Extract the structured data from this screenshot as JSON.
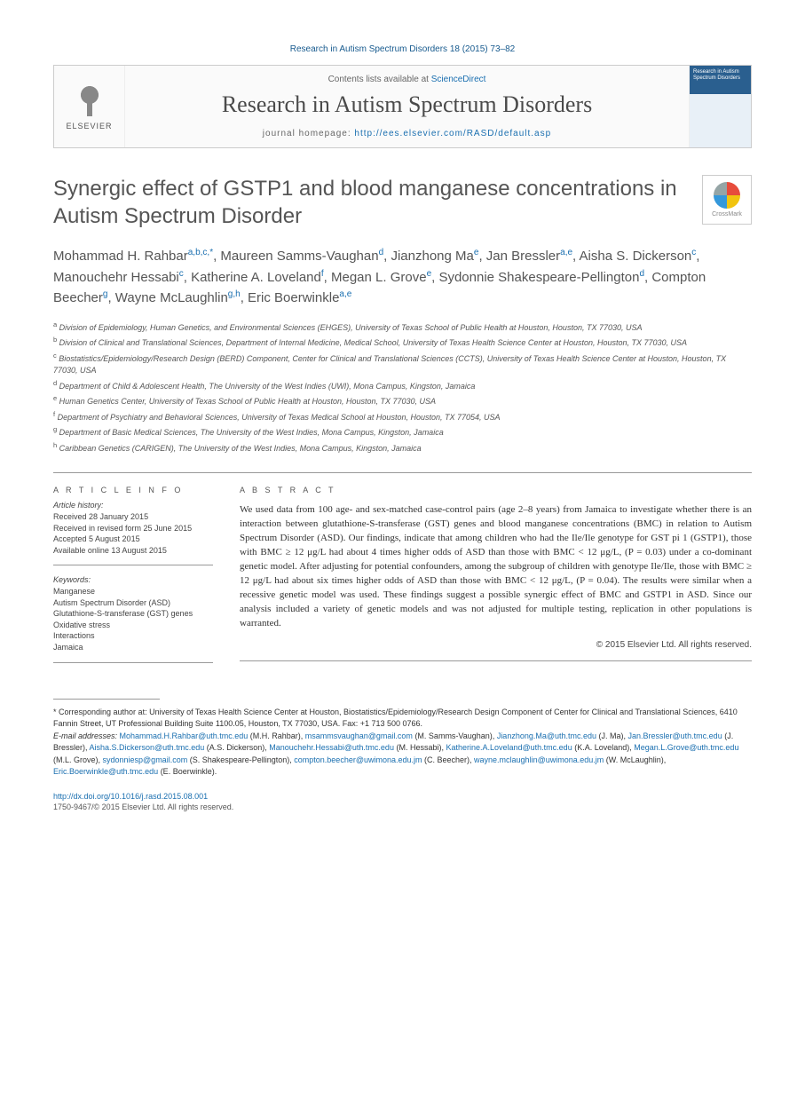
{
  "citation": "Research in Autism Spectrum Disorders 18 (2015) 73–82",
  "header": {
    "contents_prefix": "Contents lists available at ",
    "contents_link": "ScienceDirect",
    "journal_name": "Research in Autism Spectrum Disorders",
    "homepage_prefix": "journal homepage: ",
    "homepage_url": "http://ees.elsevier.com/RASD/default.asp",
    "publisher": "ELSEVIER",
    "cover_text": "Research in Autism Spectrum Disorders"
  },
  "title": "Synergic effect of GSTP1 and blood manganese concentrations in Autism Spectrum Disorder",
  "crossmark": "CrossMark",
  "authors_html": "Mohammad H. Rahbar<sup>a,b,c,*</sup>, Maureen Samms-Vaughan<sup>d</sup>, Jianzhong Ma<sup>e</sup>, Jan Bressler<sup>a,e</sup>, Aisha S. Dickerson<sup>c</sup>, Manouchehr Hessabi<sup>c</sup>, Katherine A. Loveland<sup>f</sup>, Megan L. Grove<sup>e</sup>, Sydonnie Shakespeare-Pellington<sup>d</sup>, Compton Beecher<sup>g</sup>, Wayne McLaughlin<sup>g,h</sup>, Eric Boerwinkle<sup>a,e</sup>",
  "affiliations": [
    "a Division of Epidemiology, Human Genetics, and Environmental Sciences (EHGES), University of Texas School of Public Health at Houston, Houston, TX 77030, USA",
    "b Division of Clinical and Translational Sciences, Department of Internal Medicine, Medical School, University of Texas Health Science Center at Houston, Houston, TX 77030, USA",
    "c Biostatistics/Epidemiology/Research Design (BERD) Component, Center for Clinical and Translational Sciences (CCTS), University of Texas Health Science Center at Houston, Houston, TX 77030, USA",
    "d Department of Child & Adolescent Health, The University of the West Indies (UWI), Mona Campus, Kingston, Jamaica",
    "e Human Genetics Center, University of Texas School of Public Health at Houston, Houston, TX 77030, USA",
    "f Department of Psychiatry and Behavioral Sciences, University of Texas Medical School at Houston, Houston, TX 77054, USA",
    "g Department of Basic Medical Sciences, The University of the West Indies, Mona Campus, Kingston, Jamaica",
    "h Caribbean Genetics (CARIGEN), The University of the West Indies, Mona Campus, Kingston, Jamaica"
  ],
  "article_info": {
    "heading": "A R T I C L E  I N F O",
    "history_label": "Article history:",
    "history": [
      "Received 28 January 2015",
      "Received in revised form 25 June 2015",
      "Accepted 5 August 2015",
      "Available online 13 August 2015"
    ],
    "keywords_label": "Keywords:",
    "keywords": [
      "Manganese",
      "Autism Spectrum Disorder (ASD)",
      "Glutathione-S-transferase (GST) genes",
      "Oxidative stress",
      "Interactions",
      "Jamaica"
    ]
  },
  "abstract": {
    "heading": "A B S T R A C T",
    "text": "We used data from 100 age- and sex-matched case-control pairs (age 2–8 years) from Jamaica to investigate whether there is an interaction between glutathione-S-transferase (GST) genes and blood manganese concentrations (BMC) in relation to Autism Spectrum Disorder (ASD). Our findings, indicate that among children who had the Ile/Ile genotype for GST pi 1 (GSTP1), those with BMC ≥ 12 μg/L had about 4 times higher odds of ASD than those with BMC < 12 μg/L, (P = 0.03) under a co-dominant genetic model. After adjusting for potential confounders, among the subgroup of children with genotype Ile/Ile, those with BMC ≥ 12 μg/L had about six times higher odds of ASD than those with BMC < 12 μg/L, (P = 0.04). The results were similar when a recessive genetic model was used. These findings suggest a possible synergic effect of BMC and GSTP1 in ASD. Since our analysis included a variety of genetic models and was not adjusted for multiple testing, replication in other populations is warranted.",
    "copyright": "© 2015 Elsevier Ltd. All rights reserved."
  },
  "corresponding": {
    "text": "* Corresponding author at: University of Texas Health Science Center at Houston, Biostatistics/Epidemiology/Research Design Component of Center for Clinical and Translational Sciences, 6410 Fannin Street, UT Professional Building Suite 1100.05, Houston, TX 77030, USA. Fax: +1 713 500 0766.",
    "emails_label": "E-mail addresses: ",
    "emails": [
      {
        "e": "Mohammad.H.Rahbar@uth.tmc.edu",
        "n": "(M.H. Rahbar)"
      },
      {
        "e": "msammsvaughan@gmail.com",
        "n": "(M. Samms-Vaughan)"
      },
      {
        "e": "Jianzhong.Ma@uth.tmc.edu",
        "n": "(J. Ma)"
      },
      {
        "e": "Jan.Bressler@uth.tmc.edu",
        "n": "(J. Bressler)"
      },
      {
        "e": "Aisha.S.Dickerson@uth.tmc.edu",
        "n": "(A.S. Dickerson)"
      },
      {
        "e": "Manouchehr.Hessabi@uth.tmc.edu",
        "n": "(M. Hessabi)"
      },
      {
        "e": "Katherine.A.Loveland@uth.tmc.edu",
        "n": "(K.A. Loveland)"
      },
      {
        "e": "Megan.L.Grove@uth.tmc.edu",
        "n": "(M.L. Grove)"
      },
      {
        "e": "sydonniesp@gmail.com",
        "n": "(S. Shakespeare-Pellington)"
      },
      {
        "e": "compton.beecher@uwimona.edu.jm",
        "n": "(C. Beecher)"
      },
      {
        "e": "wayne.mclaughlin@uwimona.edu.jm",
        "n": "(W. McLaughlin)"
      },
      {
        "e": "Eric.Boerwinkle@uth.tmc.edu",
        "n": "(E. Boerwinkle)"
      }
    ]
  },
  "doi": {
    "url": "http://dx.doi.org/10.1016/j.rasd.2015.08.001",
    "issn_line": "1750-9467/© 2015 Elsevier Ltd. All rights reserved."
  }
}
